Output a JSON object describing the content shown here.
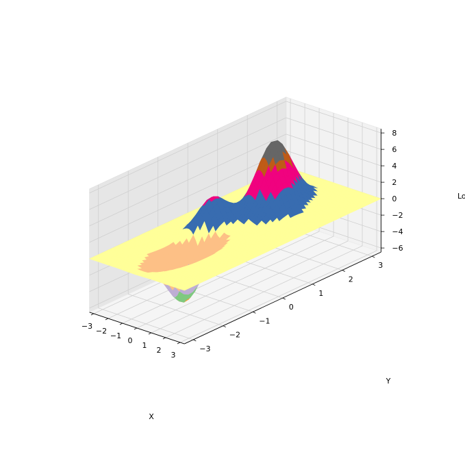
{
  "chart_data": {
    "type": "surface",
    "projection": "3d",
    "xlabel": "X",
    "ylabel": "Y",
    "zlabel": "Lo",
    "xlim": [
      -3.3,
      3.3
    ],
    "ylim": [
      -3.3,
      3.3
    ],
    "zlim": [
      -6.5,
      8.5
    ],
    "x_ticks": [
      -3,
      -2,
      -1,
      0,
      1,
      2,
      3
    ],
    "y_ticks": [
      -3,
      -2,
      -1,
      0,
      1,
      2,
      3
    ],
    "z_ticks": [
      -6,
      -4,
      -2,
      0,
      2,
      4,
      6,
      8
    ],
    "x_tick_labels": [
      "−3",
      "−2",
      "−1",
      "0",
      "1",
      "2",
      "3"
    ],
    "y_tick_labels": [
      "−3",
      "−2",
      "−1",
      "0",
      "1",
      "2",
      "3"
    ],
    "z_tick_labels": [
      "−6",
      "−4",
      "−2",
      "0",
      "2",
      "4",
      "6",
      "8"
    ],
    "grid": true,
    "surface_features": [
      {
        "kind": "peak",
        "x": -0.2,
        "y": 1.4,
        "z": 8.2
      },
      {
        "kind": "peak",
        "x": -1.2,
        "y": -0.2,
        "z": 3.5
      },
      {
        "kind": "peak",
        "x": 0.9,
        "y": 1.2,
        "z": 2.3
      },
      {
        "kind": "trough",
        "x": -0.2,
        "y": -1.6,
        "z": -6.3
      }
    ],
    "plane_level": 0,
    "color_bands": [
      {
        "min": -6.5,
        "max": -6.0,
        "color": "#f0a13a"
      },
      {
        "min": -6.0,
        "max": -4.8,
        "color": "#7fc97f"
      },
      {
        "min": -4.8,
        "max": -3.5,
        "color": "#beaed4"
      },
      {
        "min": -3.5,
        "max": -0.3,
        "color": "#fdc086"
      },
      {
        "min": -0.3,
        "max": 0.6,
        "color": "#ffff99"
      },
      {
        "min": 0.6,
        "max": 3.0,
        "color": "#386cb0"
      },
      {
        "min": 3.0,
        "max": 5.2,
        "color": "#f0027f"
      },
      {
        "min": 5.2,
        "max": 6.4,
        "color": "#bf5b17"
      },
      {
        "min": 6.4,
        "max": 8.5,
        "color": "#666666"
      }
    ]
  }
}
